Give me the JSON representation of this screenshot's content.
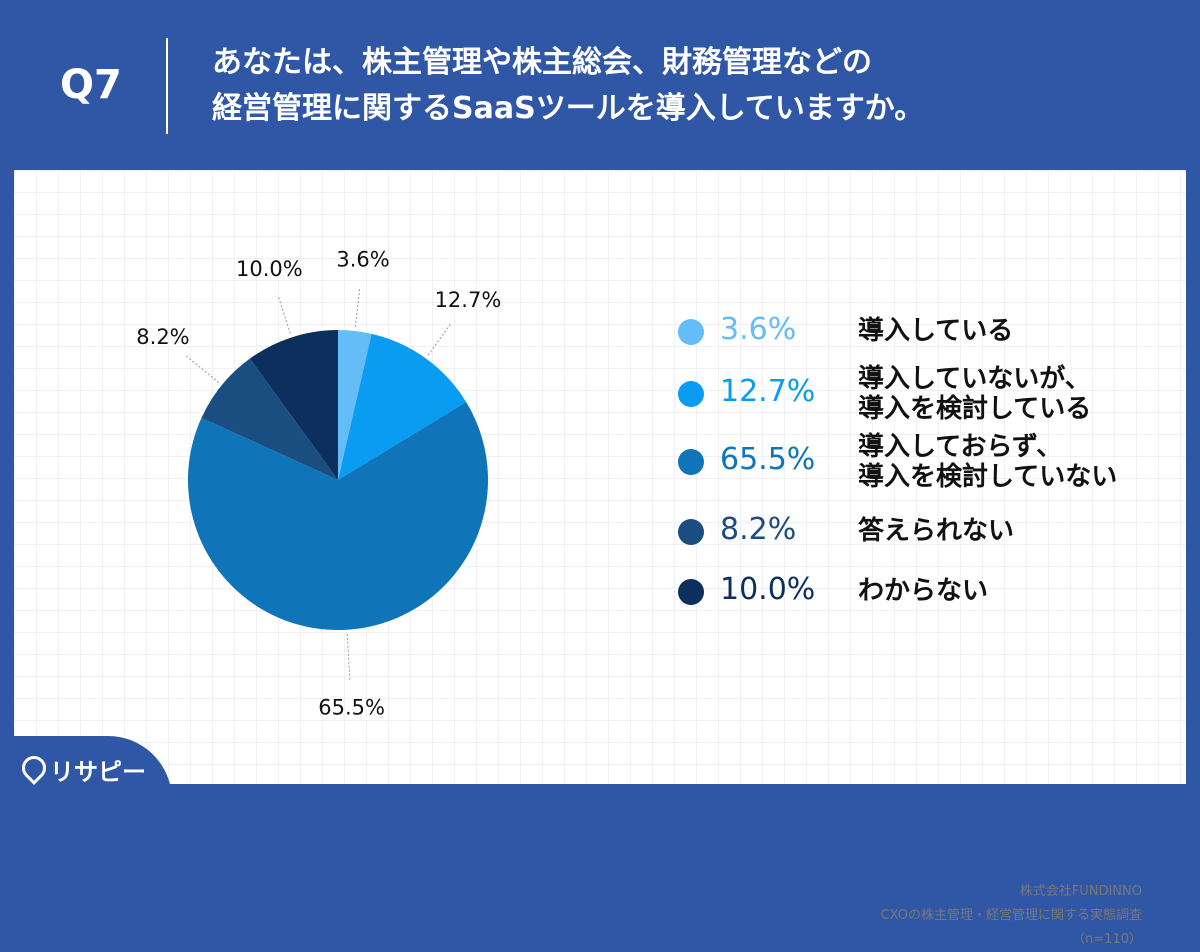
{
  "header": {
    "question_number": "Q7",
    "question_line1": "あなたは、株主管理や株主総会、財務管理などの",
    "question_line2": "経営管理に関するSaaSツールを導入していますか。"
  },
  "chart_data": {
    "type": "pie",
    "title": "",
    "start": "12 o'clock, clockwise",
    "slices": [
      {
        "label_lines": [
          "導入している"
        ],
        "value": 3.6,
        "display": "3.6%",
        "color": "#64bdf6"
      },
      {
        "label_lines": [
          "導入していないが、",
          "導入を検討している"
        ],
        "value": 12.7,
        "display": "12.7%",
        "color": "#099cf0"
      },
      {
        "label_lines": [
          "導入しておらず、",
          "導入を検討していない"
        ],
        "value": 65.5,
        "display": "65.5%",
        "color": "#0f75b8"
      },
      {
        "label_lines": [
          "答えられない"
        ],
        "value": 8.2,
        "display": "8.2%",
        "color": "#1a4d80"
      },
      {
        "label_lines": [
          "わからない"
        ],
        "value": 10.0,
        "display": "10.0%",
        "color": "#0d2f5e"
      }
    ],
    "legend_position": "right"
  },
  "source": {
    "line1": "株式会社FUNDINNO",
    "line2": "CXOの株主管理・経営管理に関する実態調査",
    "line3": "（n=110）"
  },
  "brand": {
    "logo_text": "リサピー",
    "color": "#3057a6"
  }
}
